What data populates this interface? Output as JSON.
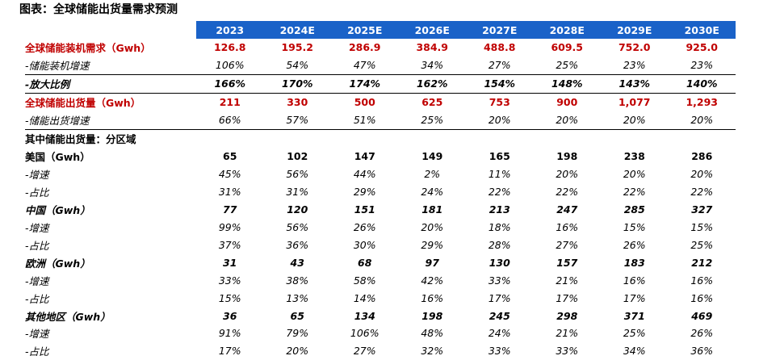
{
  "title": "图表：全球储能出货量需求预测",
  "header": [
    "2023",
    "2024E",
    "2025E",
    "2026E",
    "2027E",
    "2028E",
    "2029E",
    "2030E"
  ],
  "rows": [
    {
      "label": "全球储能装机需求（Gwh）",
      "values": [
        "126.8",
        "195.2",
        "286.9",
        "384.9",
        "488.8",
        "609.5",
        "752.0",
        "925.0"
      ]
    },
    {
      "label": "-储能装机增速",
      "values": [
        "106%",
        "54%",
        "47%",
        "34%",
        "27%",
        "25%",
        "23%",
        "23%"
      ]
    },
    {
      "label": "-放大比例",
      "values": [
        "166%",
        "170%",
        "174%",
        "162%",
        "154%",
        "148%",
        "143%",
        "140%"
      ]
    },
    {
      "label": "全球储能出货量（Gwh）",
      "values": [
        "211",
        "330",
        "500",
        "625",
        "753",
        "900",
        "1,077",
        "1,293"
      ]
    },
    {
      "label": "-储能出货增速",
      "values": [
        "66%",
        "57%",
        "51%",
        "25%",
        "20%",
        "20%",
        "20%",
        "20%"
      ]
    },
    {
      "label": "其中储能出货量：分区域",
      "values": []
    },
    {
      "label": "美国（Gwh）",
      "values": [
        "65",
        "102",
        "147",
        "149",
        "165",
        "198",
        "238",
        "286"
      ]
    },
    {
      "label": "-增速",
      "values": [
        "45%",
        "56%",
        "44%",
        "2%",
        "11%",
        "20%",
        "20%",
        "20%"
      ]
    },
    {
      "label": "-占比",
      "values": [
        "31%",
        "31%",
        "29%",
        "24%",
        "22%",
        "22%",
        "22%",
        "22%"
      ]
    },
    {
      "label": "中国（Gwh）",
      "values": [
        "77",
        "120",
        "151",
        "181",
        "213",
        "247",
        "285",
        "327"
      ]
    },
    {
      "label": "-增速",
      "values": [
        "99%",
        "56%",
        "26%",
        "20%",
        "18%",
        "16%",
        "15%",
        "15%"
      ]
    },
    {
      "label": "-占比",
      "values": [
        "37%",
        "36%",
        "30%",
        "29%",
        "28%",
        "27%",
        "26%",
        "25%"
      ]
    },
    {
      "label": "欧洲（Gwh）",
      "values": [
        "31",
        "43",
        "68",
        "97",
        "130",
        "157",
        "183",
        "212"
      ]
    },
    {
      "label": "-增速",
      "values": [
        "33%",
        "38%",
        "58%",
        "42%",
        "33%",
        "21%",
        "16%",
        "16%"
      ]
    },
    {
      "label": "-占比",
      "values": [
        "15%",
        "13%",
        "14%",
        "16%",
        "17%",
        "17%",
        "17%",
        "16%"
      ]
    },
    {
      "label": "其他地区（Gwh）",
      "values": [
        "36",
        "65",
        "134",
        "198",
        "245",
        "298",
        "371",
        "469"
      ]
    },
    {
      "label": "-增速",
      "values": [
        "91%",
        "79%",
        "106%",
        "48%",
        "24%",
        "21%",
        "25%",
        "26%"
      ]
    },
    {
      "label": "-占比",
      "values": [
        "17%",
        "20%",
        "27%",
        "32%",
        "33%",
        "33%",
        "34%",
        "36%"
      ]
    }
  ]
}
